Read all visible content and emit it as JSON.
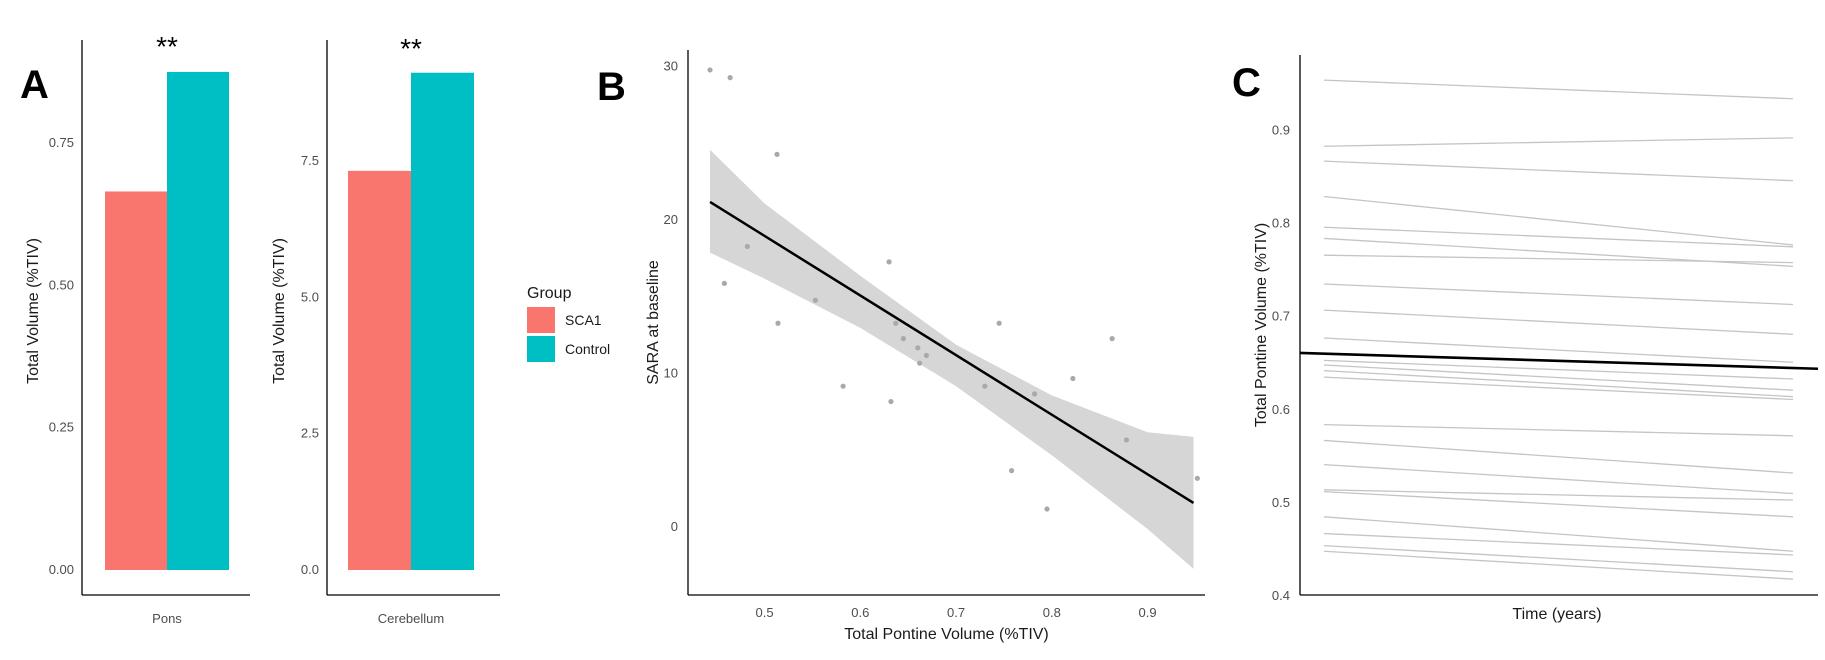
{
  "panels": {
    "A": "A",
    "B": "B",
    "C": "C"
  },
  "legend": {
    "title": "Group",
    "items": [
      {
        "label": "SCA1",
        "color": "#F8766D"
      },
      {
        "label": "Control",
        "color": "#00BFC4"
      }
    ]
  },
  "chart_data": [
    {
      "panel": "A",
      "type": "bar",
      "categories": [
        "Pons"
      ],
      "series": [
        {
          "name": "SCA1",
          "values": [
            0.665
          ],
          "color": "#F8766D"
        },
        {
          "name": "Control",
          "values": [
            0.875
          ],
          "color": "#00BFC4"
        }
      ],
      "annotations": [
        "**"
      ],
      "xlabel": "",
      "ylabel": "Total Volume (%TIV)",
      "ylim": [
        0,
        0.91
      ],
      "yticks": [
        0.0,
        0.25,
        0.5,
        0.75
      ],
      "ytick_labels": [
        "0.00",
        "0.25",
        "0.50",
        "0.75"
      ],
      "grid": false
    },
    {
      "panel": "A",
      "type": "bar",
      "categories": [
        "Cerebellum"
      ],
      "series": [
        {
          "name": "SCA1",
          "values": [
            7.32
          ],
          "color": "#F8766D"
        },
        {
          "name": "Control",
          "values": [
            9.12
          ],
          "color": "#00BFC4"
        }
      ],
      "annotations": [
        "**"
      ],
      "xlabel": "",
      "ylabel": "Total Volume (%TIV)",
      "ylim": [
        0,
        9.5
      ],
      "yticks": [
        0.0,
        2.5,
        5.0,
        7.5
      ],
      "ytick_labels": [
        "0.0",
        "2.5",
        "5.0",
        "7.5"
      ],
      "grid": false
    },
    {
      "panel": "B",
      "type": "scatter",
      "xlabel": "Total Pontine Volume (%TIV)",
      "ylabel": "SARA at baseline",
      "xlim": [
        0.42,
        0.96
      ],
      "ylim": [
        -4.5,
        31
      ],
      "xticks": [
        0.5,
        0.6,
        0.7,
        0.8,
        0.9
      ],
      "xtick_labels": [
        "0.5",
        "0.6",
        "0.7",
        "0.8",
        "0.9"
      ],
      "yticks": [
        0,
        10,
        20,
        30
      ],
      "ytick_labels": [
        "0",
        "10",
        "20",
        "30"
      ],
      "points": [
        {
          "x": 0.443,
          "y": 29.7
        },
        {
          "x": 0.464,
          "y": 29.2
        },
        {
          "x": 0.458,
          "y": 15.8
        },
        {
          "x": 0.482,
          "y": 18.2
        },
        {
          "x": 0.513,
          "y": 24.2
        },
        {
          "x": 0.514,
          "y": 13.2
        },
        {
          "x": 0.553,
          "y": 14.7
        },
        {
          "x": 0.582,
          "y": 9.1
        },
        {
          "x": 0.63,
          "y": 17.2
        },
        {
          "x": 0.632,
          "y": 8.1
        },
        {
          "x": 0.637,
          "y": 13.2
        },
        {
          "x": 0.645,
          "y": 12.2
        },
        {
          "x": 0.66,
          "y": 11.6
        },
        {
          "x": 0.662,
          "y": 10.6
        },
        {
          "x": 0.669,
          "y": 11.1
        },
        {
          "x": 0.73,
          "y": 9.1
        },
        {
          "x": 0.745,
          "y": 13.2
        },
        {
          "x": 0.758,
          "y": 3.6
        },
        {
          "x": 0.782,
          "y": 8.6
        },
        {
          "x": 0.795,
          "y": 1.1
        },
        {
          "x": 0.822,
          "y": 9.6
        },
        {
          "x": 0.863,
          "y": 12.2
        },
        {
          "x": 0.878,
          "y": 5.6
        },
        {
          "x": 0.952,
          "y": 3.1
        }
      ],
      "fit": {
        "x": [
          0.443,
          0.948
        ],
        "y": [
          21.1,
          1.5
        ]
      },
      "ci_band": {
        "x": [
          0.443,
          0.5,
          0.6,
          0.7,
          0.8,
          0.9,
          0.948
        ],
        "lower": [
          17.8,
          16.1,
          12.9,
          9.1,
          4.6,
          -0.2,
          -2.8
        ],
        "upper": [
          24.5,
          21.0,
          16.3,
          11.8,
          8.5,
          6.1,
          5.8
        ]
      },
      "grid": false
    },
    {
      "panel": "C",
      "type": "line",
      "xlabel": "Time (years)",
      "ylabel": "Total Pontine Volume (%TIV)",
      "ylim": [
        0.4,
        0.98
      ],
      "yticks": [
        0.4,
        0.5,
        0.6,
        0.7,
        0.8,
        0.9
      ],
      "ytick_labels": [
        "0.4",
        "0.5",
        "0.6",
        "0.7",
        "0.8",
        "0.9"
      ],
      "x": [
        0,
        1
      ],
      "series": [
        {
          "values": [
            0.953,
            0.933
          ]
        },
        {
          "values": [
            0.882,
            0.891
          ]
        },
        {
          "values": [
            0.866,
            0.845
          ]
        },
        {
          "values": [
            0.828,
            0.776
          ]
        },
        {
          "values": [
            0.795,
            0.774
          ]
        },
        {
          "values": [
            0.783,
            0.753
          ]
        },
        {
          "values": [
            0.765,
            0.757
          ]
        },
        {
          "values": [
            0.734,
            0.712
          ]
        },
        {
          "values": [
            0.706,
            0.68
          ]
        },
        {
          "values": [
            0.676,
            0.65
          ]
        },
        {
          "values": [
            0.652,
            0.632
          ]
        },
        {
          "values": [
            0.647,
            0.62
          ]
        },
        {
          "values": [
            0.641,
            0.613
          ]
        },
        {
          "values": [
            0.634,
            0.61
          ]
        },
        {
          "values": [
            0.583,
            0.571
          ]
        },
        {
          "values": [
            0.566,
            0.531
          ]
        },
        {
          "values": [
            0.54,
            0.509
          ]
        },
        {
          "values": [
            0.513,
            0.502
          ]
        },
        {
          "values": [
            0.511,
            0.484
          ]
        },
        {
          "values": [
            0.484,
            0.447
          ]
        },
        {
          "values": [
            0.466,
            0.443
          ]
        },
        {
          "values": [
            0.453,
            0.425
          ]
        },
        {
          "values": [
            0.447,
            0.417
          ]
        }
      ],
      "mean_line": {
        "values": [
          0.66,
          0.643
        ]
      },
      "grid": false
    }
  ]
}
